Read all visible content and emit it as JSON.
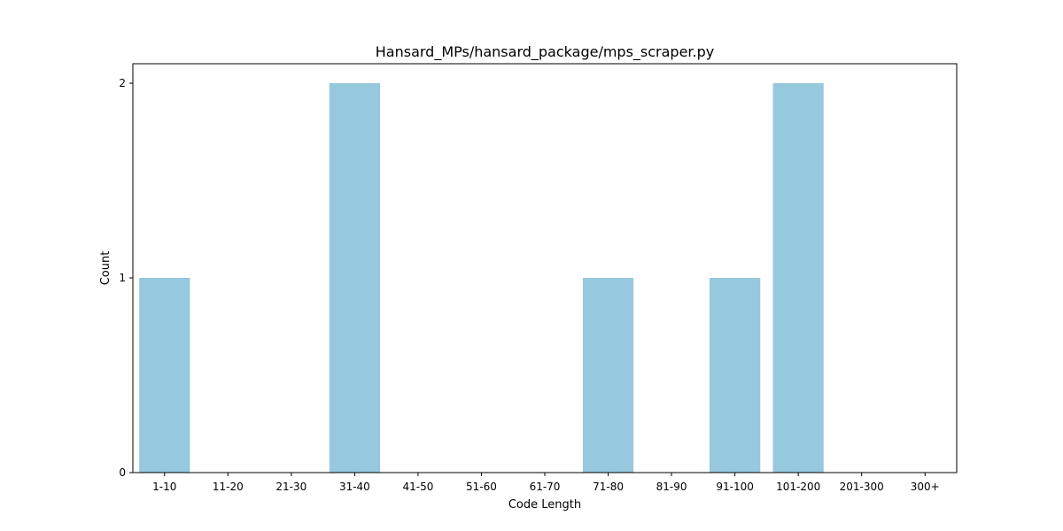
{
  "chart_data": {
    "type": "bar",
    "title": "Hansard_MPs/hansard_package/mps_scraper.py",
    "xlabel": "Code Length",
    "ylabel": "Count",
    "categories": [
      "1-10",
      "11-20",
      "21-30",
      "31-40",
      "41-50",
      "51-60",
      "61-70",
      "71-80",
      "81-90",
      "91-100",
      "101-200",
      "201-300",
      "300+"
    ],
    "values": [
      1,
      0,
      0,
      2,
      0,
      0,
      0,
      1,
      0,
      1,
      2,
      0,
      0
    ],
    "ylim": [
      0,
      2.1
    ],
    "yticks": [
      0,
      1,
      2
    ],
    "grid": false,
    "bar_color": "#96c8de"
  }
}
